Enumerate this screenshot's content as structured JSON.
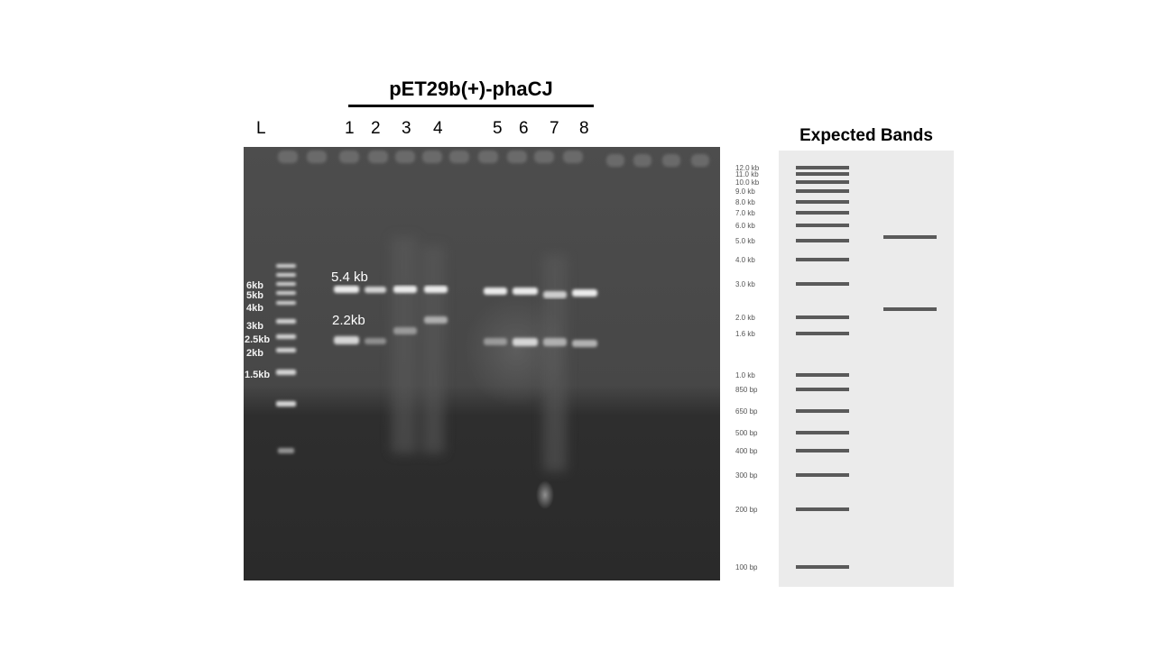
{
  "construct": {
    "title": "pET29b(+)-phaCJ"
  },
  "lanes": {
    "ladder_label": "L",
    "numbers": [
      "1",
      "2",
      "3",
      "4",
      "5",
      "6",
      "7",
      "8"
    ]
  },
  "gel": {
    "band_annotations": [
      "5.4 kb",
      "2.2kb"
    ],
    "marker_labels": [
      "6kb",
      "5kb",
      "4kb",
      "3kb",
      "2.5kb",
      "2kb",
      "1.5kb"
    ]
  },
  "expected": {
    "title": "Expected Bands",
    "ladder_labels": [
      "12.0 kb",
      "11.0 kb",
      "10.0 kb",
      "9.0 kb",
      "8.0 kb",
      "7.0 kb",
      "6.0 kb",
      "5.0 kb",
      "4.0 kb",
      "3.0 kb",
      "2.0 kb",
      "1.6 kb",
      "1.0 kb",
      "850 bp",
      "650 bp",
      "500 bp",
      "400 bp",
      "300 bp",
      "200 bp",
      "100 bp"
    ]
  }
}
